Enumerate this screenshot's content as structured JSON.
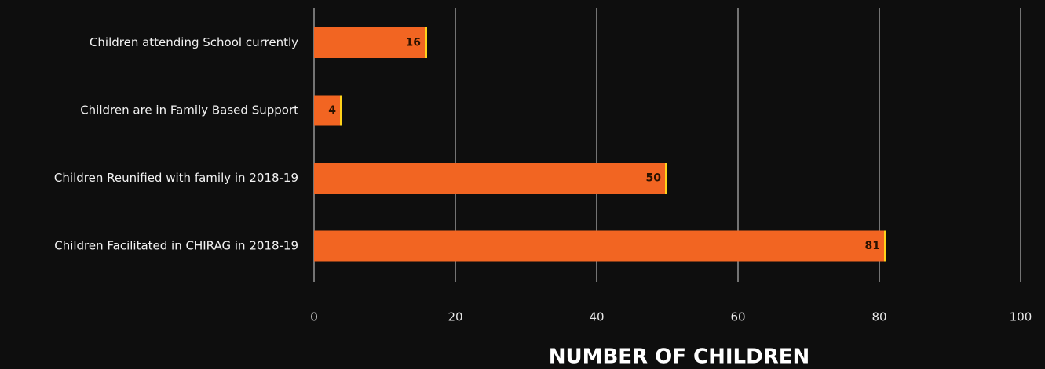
{
  "chart_data": {
    "type": "bar",
    "orientation": "horizontal",
    "categories": [
      "Children attending School currently",
      "Children are in Family Based Support",
      "Children Reunified with family in 2018-19",
      "Children Facilitated in CHIRAG in 2018-19"
    ],
    "values": [
      16,
      4,
      50,
      81
    ],
    "color": "#f26522",
    "xlabel": "NUMBER OF CHILDREN",
    "xlim": [
      0,
      100
    ],
    "xticks": [
      0,
      20,
      40,
      60,
      80,
      100
    ],
    "grid": true
  }
}
